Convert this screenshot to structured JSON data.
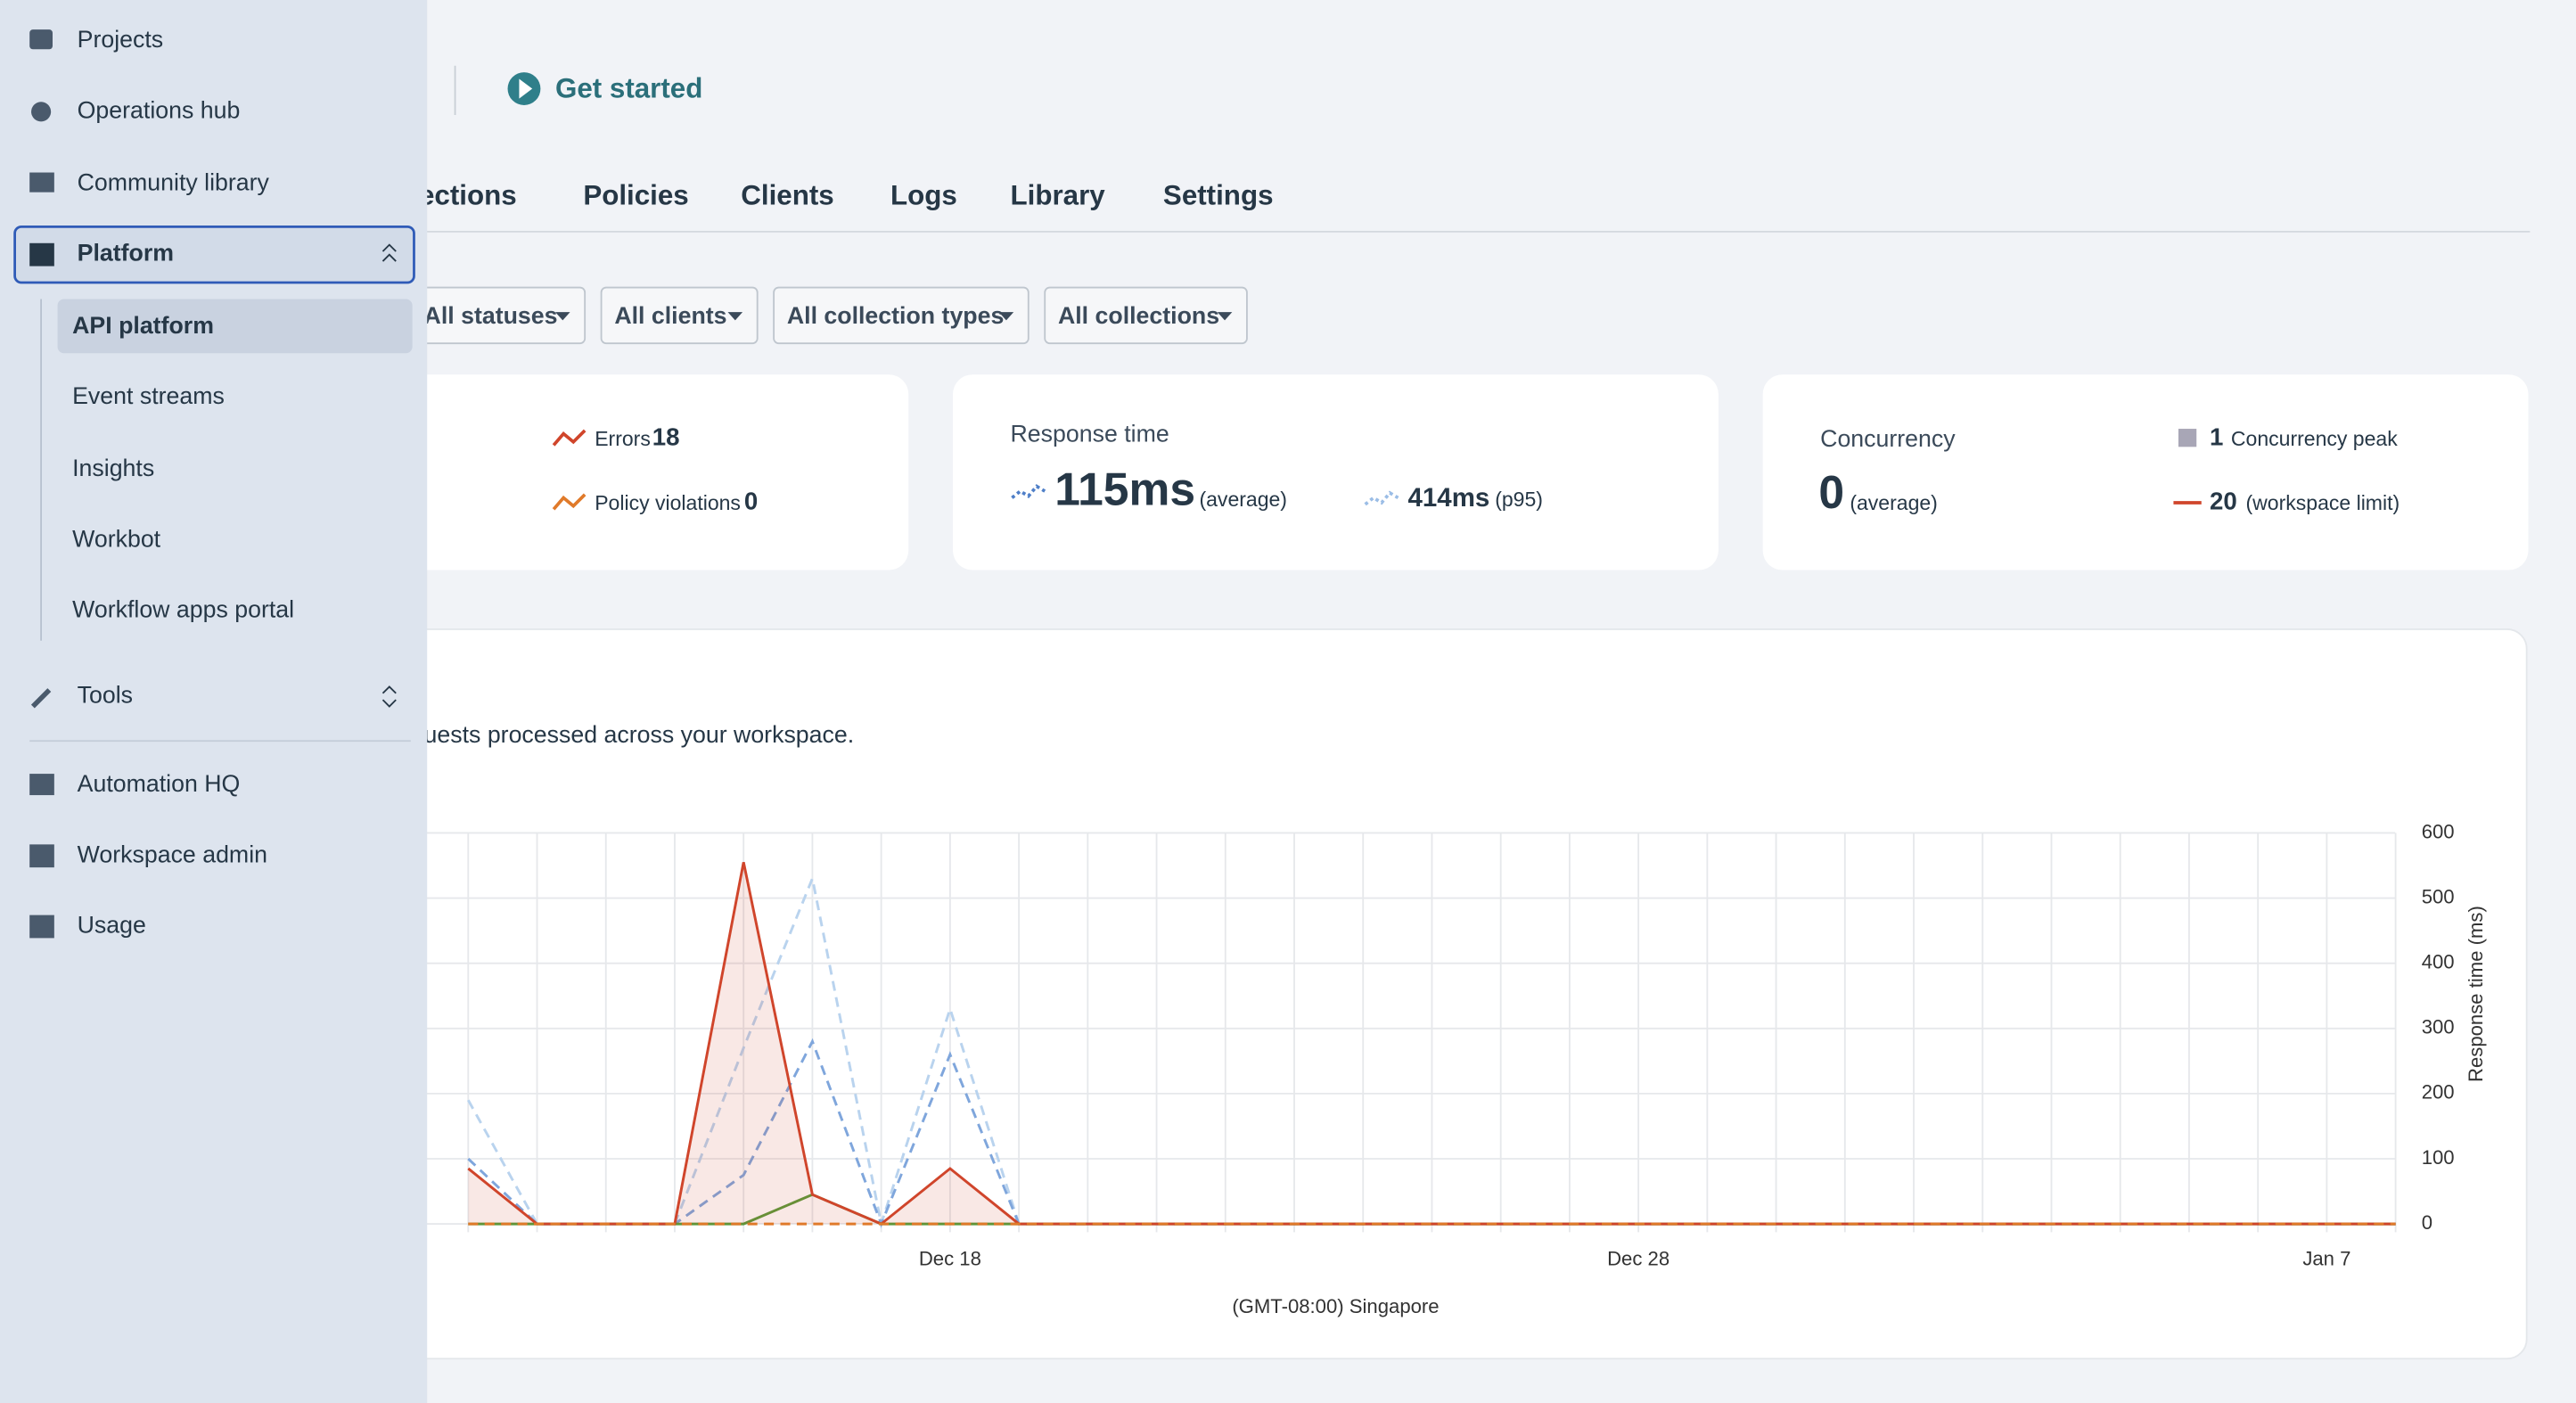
{
  "header": {
    "get_started": "Get started"
  },
  "tabs": [
    "ections",
    "Policies",
    "Clients",
    "Logs",
    "Library",
    "Settings"
  ],
  "filters": [
    "All statuses",
    "All clients",
    "All collection types",
    "All collections"
  ],
  "cards": {
    "activity": {
      "errors_label": "Errors",
      "errors": 18,
      "policy_label": "Policy violations",
      "policy": 0
    },
    "response": {
      "title": "Response time",
      "average": "115ms",
      "average_label": "(average)",
      "p95": "414ms",
      "p95_label": "(p95)"
    },
    "concurrency": {
      "title": "Concurrency",
      "average": 0,
      "average_label": "(average)",
      "peak": 1,
      "peak_label": "Concurrency peak",
      "limit": 20,
      "limit_label": "(workspace limit)"
    }
  },
  "chart_panel": {
    "subtitle": "uests processed across your workspace."
  },
  "chart_data": {
    "type": "line",
    "categories": [
      null,
      null,
      null,
      null,
      null,
      null,
      null,
      "Dec 18",
      null,
      null,
      null,
      null,
      null,
      null,
      null,
      null,
      null,
      "Dec 28",
      null,
      null,
      null,
      null,
      null,
      null,
      null,
      null,
      null,
      "Jan 7",
      null
    ],
    "x_label": "(GMT-08:00) Singapore",
    "y2_label": "Response time (ms)",
    "y2lim": [
      0,
      600
    ],
    "y2ticks": [
      0,
      100,
      200,
      300,
      400,
      500,
      600
    ],
    "grid": true,
    "series": [
      {
        "color": "#b9d3ee",
        "dashed": true,
        "axis": "y2",
        "values": [
          190,
          0,
          0,
          0,
          270,
          530,
          0,
          330,
          0,
          0,
          0,
          0,
          0,
          0,
          0,
          0,
          0,
          0,
          0,
          0,
          0,
          0,
          0,
          0,
          0,
          0,
          0,
          0,
          0
        ]
      },
      {
        "color": "#7fa6dc",
        "dashed": true,
        "axis": "y2",
        "values": [
          100,
          0,
          0,
          0,
          75,
          280,
          0,
          260,
          0,
          0,
          0,
          0,
          0,
          0,
          0,
          0,
          0,
          0,
          0,
          0,
          0,
          0,
          0,
          0,
          0,
          0,
          0,
          0,
          0
        ]
      },
      {
        "color": "#5a9a3a",
        "dashed": false,
        "axis": "y2",
        "values": [
          0,
          0,
          0,
          0,
          0,
          45,
          0,
          0,
          0,
          0,
          0,
          0,
          0,
          0,
          0,
          0,
          0,
          0,
          0,
          0,
          0,
          0,
          0,
          0,
          0,
          0,
          0,
          0,
          0
        ]
      },
      {
        "color": "#d0452b",
        "dashed": false,
        "area": true,
        "axis": "y2",
        "values": [
          85,
          0,
          0,
          0,
          555,
          45,
          0,
          85,
          0,
          0,
          0,
          0,
          0,
          0,
          0,
          0,
          0,
          0,
          0,
          0,
          0,
          0,
          0,
          0,
          0,
          0,
          0,
          0,
          0
        ]
      },
      {
        "color": "#e07a2a",
        "dashed": true,
        "axis": "y2",
        "values": [
          0,
          0,
          0,
          0,
          0,
          0,
          0,
          0,
          0,
          0,
          0,
          0,
          0,
          0,
          0,
          0,
          0,
          0,
          0,
          0,
          0,
          0,
          0,
          0,
          0,
          0,
          0,
          0,
          0
        ]
      }
    ]
  },
  "sidebar": {
    "top": [
      "Projects",
      "Operations hub",
      "Community library"
    ],
    "platform": "Platform",
    "platform_items": [
      "API platform",
      "Event streams",
      "Insights",
      "Workbot",
      "Workflow apps portal"
    ],
    "tools": "Tools",
    "bottom": [
      "Automation HQ",
      "Workspace admin",
      "Usage"
    ]
  }
}
